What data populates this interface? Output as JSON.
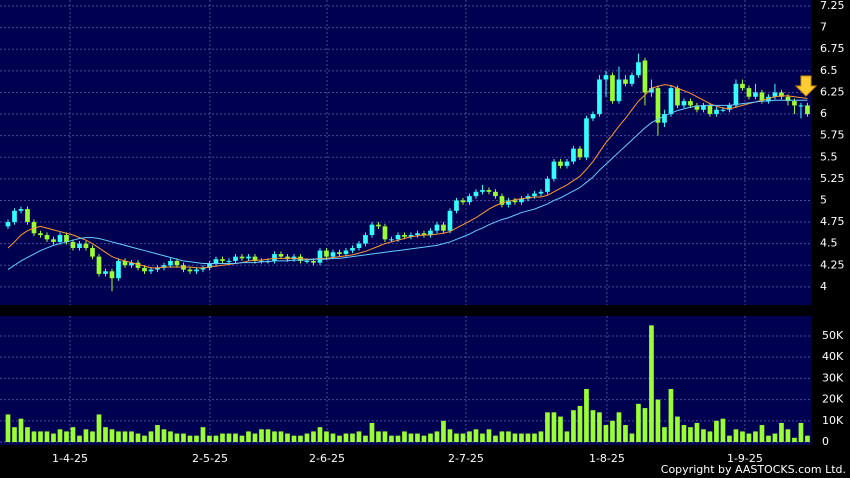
{
  "chart_data": {
    "type": "candlestick",
    "up_color": "#33ffff",
    "down_color": "#99ff33",
    "background": "#000050",
    "xlim": [
      -1.23,
      123.7
    ],
    "xticks": [
      {
        "value": 9.54,
        "label": "1-4-25"
      },
      {
        "value": 31.08,
        "label": "2-5-25"
      },
      {
        "value": 49.08,
        "label": "2-6-25"
      },
      {
        "value": 70.46,
        "label": "2-7-25"
      },
      {
        "value": 92.15,
        "label": "1-8-25"
      },
      {
        "value": 113.38,
        "label": "1-9-25"
      }
    ],
    "ylim": [
      3.79,
      7.32
    ],
    "yticks": [
      4,
      4.25,
      4.5,
      4.75,
      5,
      5.25,
      5.5,
      5.75,
      6,
      6.25,
      6.5,
      6.75,
      7,
      7.25
    ],
    "open": [
      4.7,
      4.75,
      4.88,
      4.9,
      4.75,
      4.62,
      4.6,
      4.55,
      4.52,
      4.6,
      4.52,
      4.45,
      4.5,
      4.45,
      4.35,
      4.15,
      4.18,
      4.1,
      4.3,
      4.25,
      4.28,
      4.22,
      4.18,
      4.2,
      4.22,
      4.25,
      4.3,
      4.25,
      4.2,
      4.18,
      4.2,
      4.22,
      4.27,
      4.32,
      4.3,
      4.3,
      4.35,
      4.33,
      4.35,
      4.3,
      4.3,
      4.3,
      4.38,
      4.35,
      4.32,
      4.35,
      4.3,
      4.3,
      4.28,
      4.42,
      4.35,
      4.4,
      4.38,
      4.42,
      4.45,
      4.5,
      4.6,
      4.72,
      4.7,
      4.55,
      4.55,
      4.6,
      4.58,
      4.6,
      4.62,
      4.6,
      4.65,
      4.72,
      4.65,
      4.88,
      5.0,
      4.98,
      5.05,
      5.1,
      5.12,
      5.1,
      5.05,
      4.95,
      5.0,
      4.98,
      5.02,
      5.05,
      5.08,
      5.1,
      5.25,
      5.45,
      5.4,
      5.45,
      5.6,
      5.5,
      5.95,
      6.0,
      6.4,
      6.45,
      6.15,
      6.4,
      6.35,
      6.45,
      6.62,
      6.25,
      6.3,
      5.9,
      6.0,
      6.3,
      6.1,
      6.15,
      6.1,
      6.05,
      6.1,
      6.0,
      6.05,
      6.05,
      6.1,
      6.35,
      6.3,
      6.2,
      6.25,
      6.15,
      6.2,
      6.25,
      6.2,
      6.15,
      6.1,
      6.1
    ],
    "high": [
      4.78,
      4.91,
      4.93,
      4.93,
      4.78,
      4.65,
      4.63,
      4.58,
      4.63,
      4.63,
      4.55,
      4.53,
      4.53,
      4.48,
      4.38,
      4.21,
      4.21,
      4.33,
      4.33,
      4.31,
      4.31,
      4.25,
      4.23,
      4.25,
      4.28,
      4.33,
      4.33,
      4.28,
      4.23,
      4.23,
      4.25,
      4.3,
      4.35,
      4.35,
      4.33,
      4.38,
      4.38,
      4.38,
      4.38,
      4.33,
      4.33,
      4.41,
      4.41,
      4.38,
      4.38,
      4.38,
      4.33,
      4.33,
      4.45,
      4.45,
      4.43,
      4.43,
      4.45,
      4.48,
      4.53,
      4.63,
      4.75,
      4.75,
      4.73,
      4.58,
      4.63,
      4.63,
      4.63,
      4.65,
      4.65,
      4.68,
      4.75,
      4.75,
      4.91,
      5.03,
      5.03,
      5.08,
      5.13,
      5.18,
      5.15,
      5.13,
      5.08,
      5.03,
      5.03,
      5.05,
      5.08,
      5.11,
      5.13,
      5.28,
      5.48,
      5.48,
      5.48,
      5.63,
      5.63,
      5.98,
      6.03,
      6.45,
      6.5,
      6.48,
      6.55,
      6.45,
      6.48,
      6.7,
      6.65,
      6.4,
      6.33,
      6.05,
      6.33,
      6.33,
      6.18,
      6.18,
      6.13,
      6.13,
      6.13,
      6.08,
      6.08,
      6.13,
      6.4,
      6.4,
      6.33,
      6.35,
      6.28,
      6.23,
      6.35,
      6.28,
      6.23,
      6.18,
      6.13,
      6.13
    ],
    "low": [
      4.67,
      4.72,
      4.85,
      4.72,
      4.59,
      4.57,
      4.52,
      4.49,
      4.49,
      4.49,
      4.42,
      4.42,
      4.42,
      4.32,
      4.12,
      4.12,
      3.95,
      4.07,
      4.22,
      4.22,
      4.19,
      4.15,
      4.15,
      4.17,
      4.19,
      4.22,
      4.22,
      4.17,
      4.15,
      4.15,
      4.17,
      4.19,
      4.24,
      4.27,
      4.27,
      4.27,
      4.3,
      4.3,
      4.27,
      4.27,
      4.27,
      4.27,
      4.32,
      4.29,
      4.29,
      4.27,
      4.27,
      4.25,
      4.25,
      4.32,
      4.32,
      4.35,
      4.35,
      4.39,
      4.42,
      4.47,
      4.57,
      4.67,
      4.52,
      4.52,
      4.52,
      4.55,
      4.55,
      4.57,
      4.57,
      4.57,
      4.62,
      4.62,
      4.62,
      4.85,
      4.95,
      4.95,
      5.02,
      5.07,
      5.07,
      5.02,
      4.92,
      4.92,
      4.95,
      4.95,
      4.99,
      5.02,
      5.05,
      5.07,
      5.22,
      5.37,
      5.37,
      5.42,
      5.47,
      5.47,
      5.92,
      5.97,
      6.2,
      6.12,
      6.12,
      6.32,
      6.32,
      6.42,
      6.1,
      6.2,
      5.75,
      5.85,
      5.97,
      6.07,
      6.07,
      6.07,
      6.02,
      6.02,
      5.97,
      5.97,
      6.02,
      6.02,
      6.07,
      6.27,
      6.17,
      6.17,
      6.12,
      6.12,
      6.17,
      6.17,
      6.1,
      6.0,
      5.95,
      5.97
    ],
    "close": [
      4.75,
      4.88,
      4.9,
      4.75,
      4.62,
      4.6,
      4.55,
      4.52,
      4.6,
      4.52,
      4.45,
      4.5,
      4.45,
      4.35,
      4.15,
      4.18,
      4.1,
      4.3,
      4.25,
      4.28,
      4.22,
      4.18,
      4.2,
      4.22,
      4.25,
      4.3,
      4.25,
      4.2,
      4.18,
      4.2,
      4.22,
      4.27,
      4.32,
      4.3,
      4.3,
      4.35,
      4.33,
      4.35,
      4.3,
      4.3,
      4.3,
      4.38,
      4.35,
      4.32,
      4.35,
      4.3,
      4.3,
      4.28,
      4.42,
      4.35,
      4.4,
      4.38,
      4.42,
      4.45,
      4.5,
      4.6,
      4.72,
      4.7,
      4.55,
      4.55,
      4.6,
      4.58,
      4.6,
      4.62,
      4.6,
      4.65,
      4.72,
      4.65,
      4.88,
      5.0,
      4.98,
      5.05,
      5.1,
      5.12,
      5.1,
      5.05,
      4.95,
      5.0,
      4.98,
      5.02,
      5.05,
      5.08,
      5.1,
      5.25,
      5.45,
      5.4,
      5.45,
      5.6,
      5.5,
      5.95,
      6.0,
      6.4,
      6.45,
      6.15,
      6.4,
      6.35,
      6.45,
      6.6,
      6.25,
      6.3,
      5.9,
      6.0,
      6.3,
      6.1,
      6.15,
      6.1,
      6.05,
      6.1,
      6.0,
      6.05,
      6.05,
      6.1,
      6.35,
      6.3,
      6.2,
      6.25,
      6.15,
      6.2,
      6.25,
      6.2,
      6.15,
      6.1,
      6.1,
      6.0
    ],
    "lines": [
      {
        "color": "#ff9933",
        "values": [
          4.45,
          4.52,
          4.6,
          4.65,
          4.68,
          4.7,
          4.68,
          4.66,
          4.64,
          4.62,
          4.6,
          4.57,
          4.54,
          4.5,
          4.45,
          4.4,
          4.35,
          4.32,
          4.3,
          4.28,
          4.26,
          4.24,
          4.22,
          4.22,
          4.23,
          4.23,
          4.23,
          4.23,
          4.23,
          4.22,
          4.22,
          4.23,
          4.24,
          4.25,
          4.26,
          4.27,
          4.28,
          4.3,
          4.31,
          4.31,
          4.32,
          4.33,
          4.33,
          4.33,
          4.33,
          4.33,
          4.32,
          4.32,
          4.33,
          4.33,
          4.34,
          4.35,
          4.36,
          4.37,
          4.39,
          4.41,
          4.44,
          4.47,
          4.5,
          4.52,
          4.54,
          4.56,
          4.58,
          4.59,
          4.6,
          4.6,
          4.61,
          4.62,
          4.64,
          4.68,
          4.72,
          4.76,
          4.8,
          4.85,
          4.9,
          4.94,
          4.97,
          4.99,
          5.01,
          5.02,
          5.03,
          5.04,
          5.04,
          5.06,
          5.1,
          5.14,
          5.18,
          5.23,
          5.28,
          5.36,
          5.45,
          5.56,
          5.67,
          5.76,
          5.86,
          5.95,
          6.05,
          6.15,
          6.22,
          6.3,
          6.32,
          6.34,
          6.33,
          6.3,
          6.27,
          6.24,
          6.2,
          6.16,
          6.12,
          6.09,
          6.07,
          6.06,
          6.08,
          6.1,
          6.12,
          6.14,
          6.16,
          6.18,
          6.2,
          6.21,
          6.21,
          6.2,
          6.19,
          6.18
        ]
      },
      {
        "color": "#66ccff",
        "values": [
          4.2,
          4.25,
          4.3,
          4.34,
          4.38,
          4.42,
          4.45,
          4.48,
          4.5,
          4.52,
          4.54,
          4.56,
          4.57,
          4.57,
          4.56,
          4.54,
          4.52,
          4.5,
          4.48,
          4.46,
          4.44,
          4.42,
          4.4,
          4.38,
          4.36,
          4.34,
          4.32,
          4.3,
          4.29,
          4.28,
          4.27,
          4.27,
          4.27,
          4.27,
          4.27,
          4.27,
          4.28,
          4.28,
          4.28,
          4.29,
          4.29,
          4.3,
          4.3,
          4.3,
          4.31,
          4.31,
          4.31,
          4.32,
          4.32,
          4.32,
          4.33,
          4.33,
          4.34,
          4.35,
          4.36,
          4.37,
          4.38,
          4.39,
          4.4,
          4.41,
          4.42,
          4.43,
          4.44,
          4.45,
          4.46,
          4.47,
          4.48,
          4.5,
          4.52,
          4.55,
          4.58,
          4.61,
          4.65,
          4.68,
          4.72,
          4.75,
          4.78,
          4.8,
          4.83,
          4.86,
          4.88,
          4.9,
          4.93,
          4.96,
          5.0,
          5.03,
          5.07,
          5.11,
          5.15,
          5.21,
          5.27,
          5.35,
          5.42,
          5.49,
          5.56,
          5.63,
          5.7,
          5.77,
          5.84,
          5.9,
          5.94,
          5.98,
          6.01,
          6.04,
          6.06,
          6.08,
          6.09,
          6.1,
          6.1,
          6.1,
          6.1,
          6.1,
          6.11,
          6.12,
          6.13,
          6.14,
          6.15,
          6.15,
          6.16,
          6.16,
          6.16,
          6.16,
          6.16,
          6.16
        ]
      }
    ],
    "volume": {
      "color": "#99ff33",
      "ylim": [
        -1400,
        59400
      ],
      "yticks": [
        0,
        {
          "value": 10000,
          "label": "10K"
        },
        {
          "value": 20000,
          "label": "20K"
        },
        {
          "value": 30000,
          "label": "30K"
        },
        {
          "value": 40000,
          "label": "40K"
        },
        {
          "value": 50000,
          "label": "50K"
        }
      ],
      "values": [
        13000,
        7000,
        11000,
        7000,
        5000,
        5000,
        5000,
        4000,
        6000,
        5000,
        7000,
        3000,
        6000,
        5000,
        13000,
        7000,
        6000,
        5000,
        5000,
        5000,
        4000,
        3000,
        5000,
        8000,
        6000,
        5000,
        4000,
        4000,
        3000,
        3000,
        7000,
        3000,
        3000,
        4000,
        4000,
        4000,
        3000,
        5000,
        4000,
        6000,
        6000,
        5000,
        5000,
        4000,
        3000,
        3000,
        4000,
        5000,
        7000,
        5000,
        4000,
        3000,
        4000,
        4000,
        5000,
        3000,
        9000,
        5000,
        5000,
        3000,
        3000,
        5000,
        4000,
        4000,
        3000,
        4000,
        5000,
        10000,
        6000,
        4000,
        4000,
        5000,
        6000,
        4000,
        6000,
        3000,
        5000,
        5000,
        4000,
        4000,
        4000,
        4000,
        5000,
        14000,
        14000,
        12000,
        5000,
        15000,
        17000,
        25000,
        15000,
        14000,
        8000,
        10000,
        14000,
        8000,
        4000,
        18000,
        16000,
        55000,
        20000,
        7000,
        25000,
        12000,
        8000,
        7000,
        9000,
        6000,
        5000,
        10000,
        11000,
        3000,
        6000,
        5000,
        4000,
        5000,
        8000,
        3000,
        4000,
        9000,
        6000,
        2000,
        9000,
        3000
      ]
    },
    "copyright": "Copyright by AASTOCKS.com Ltd."
  }
}
